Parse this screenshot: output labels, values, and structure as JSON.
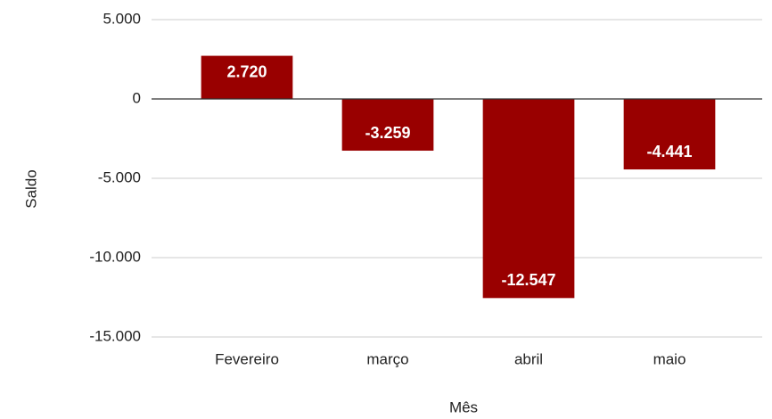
{
  "chart_data": {
    "type": "bar",
    "categories": [
      "Fevereiro",
      "março",
      "abril",
      "maio"
    ],
    "values": [
      2720,
      -3259,
      -12547,
      -4441
    ],
    "value_labels": [
      "2.720",
      "-3.259",
      "-12.547",
      "-4.441"
    ],
    "color": "#990000",
    "x_label": "Mês",
    "y_label": "Saldo",
    "ylim": [
      -15000,
      5000
    ],
    "yticks": [
      {
        "value": 5000,
        "label": "5.000"
      },
      0,
      {
        "value": -5000,
        "label": "-5.000"
      },
      {
        "value": -10000,
        "label": "-10.000"
      },
      {
        "value": -15000,
        "label": "-15.000"
      }
    ],
    "grid": true
  }
}
